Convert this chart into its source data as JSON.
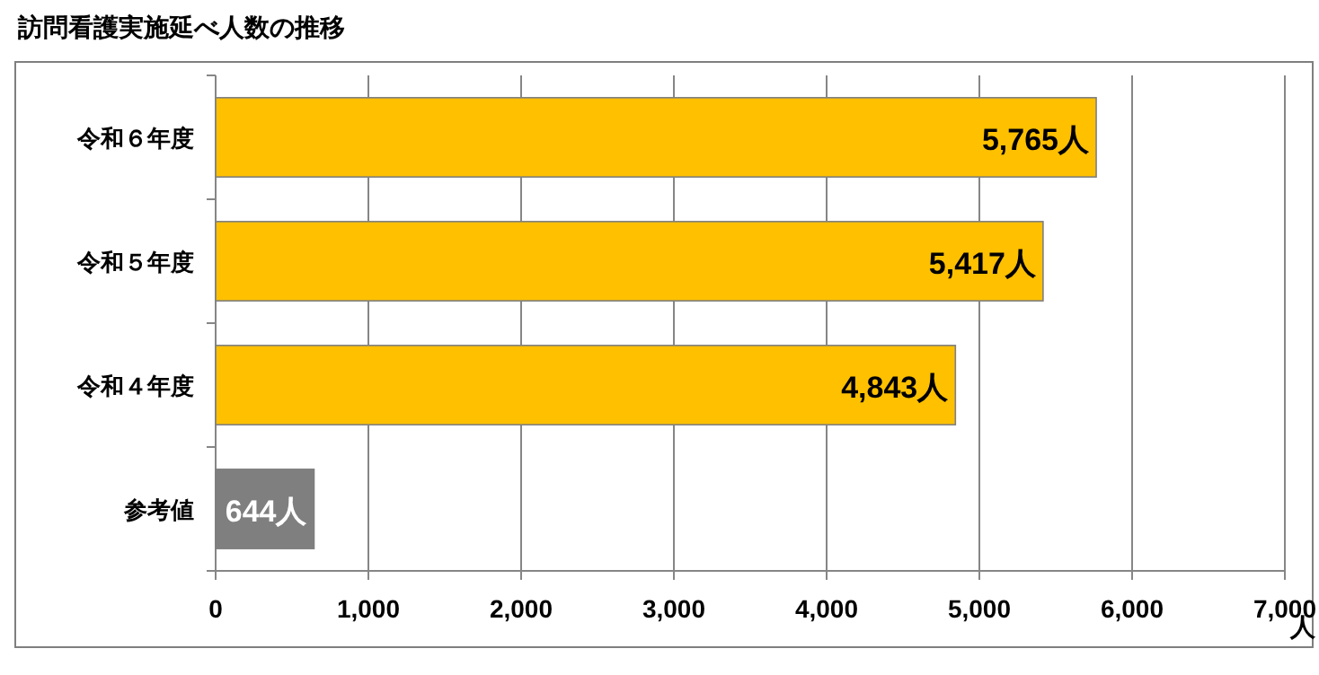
{
  "chart_data": {
    "type": "bar",
    "orientation": "horizontal",
    "title": "訪問看護実施延べ人数の推移",
    "xlabel": "人",
    "categories": [
      "令和６年度",
      "令和５年度",
      "令和４年度",
      "参考値"
    ],
    "values": [
      5765,
      5417,
      4843,
      644
    ],
    "colors": [
      "#ffc000",
      "#ffc000",
      "#ffc000",
      "#7f7f7f"
    ],
    "value_labels": [
      "5,765人",
      "5,417人",
      "4,843人",
      "644人"
    ],
    "xlim": [
      0,
      7000
    ],
    "xticks": [
      {
        "value": 0,
        "label": "0"
      },
      {
        "value": 1000,
        "label": "1,000"
      },
      {
        "value": 2000,
        "label": "2,000"
      },
      {
        "value": 3000,
        "label": "3,000"
      },
      {
        "value": 4000,
        "label": "4,000"
      },
      {
        "value": 5000,
        "label": "5,000"
      },
      {
        "value": 6000,
        "label": "6,000"
      },
      {
        "value": 7000,
        "label": "7,000"
      }
    ],
    "grid": "x"
  }
}
